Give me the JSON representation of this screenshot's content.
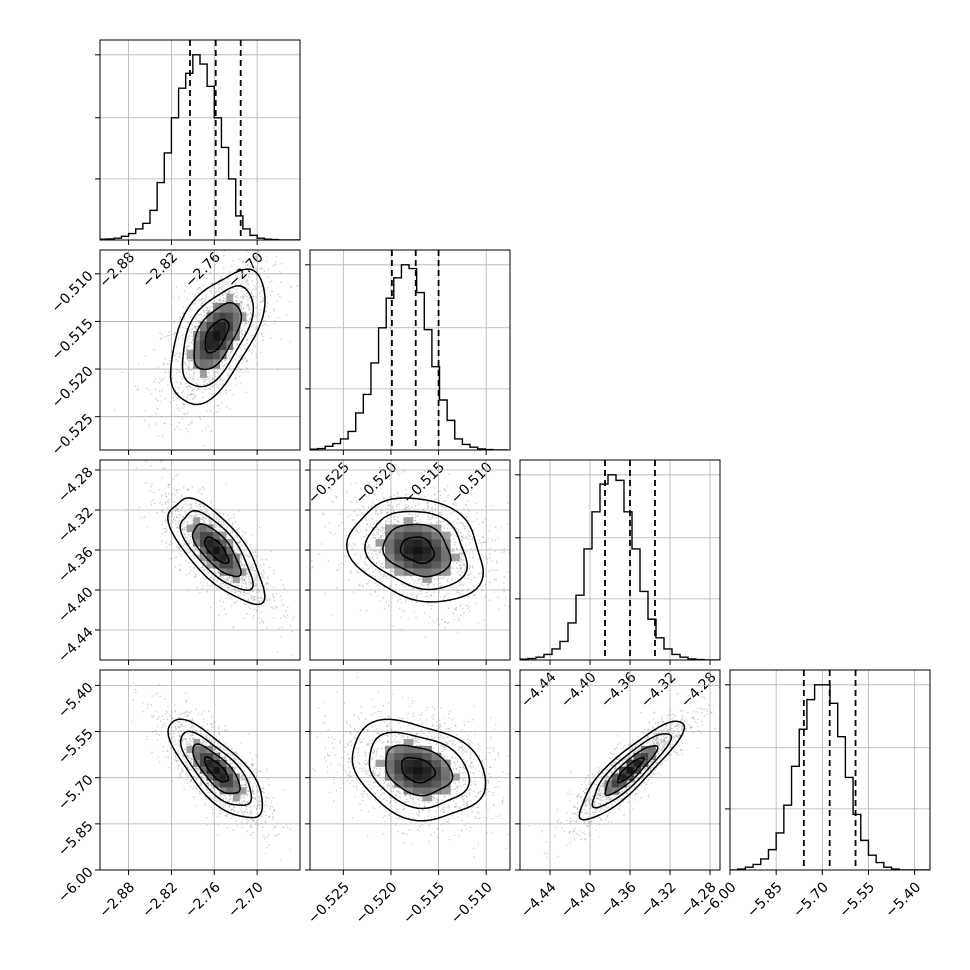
{
  "chart_data": {
    "type": "corner",
    "grid": true,
    "colors": {
      "line": "#000000",
      "grid": "#b0b0b0",
      "scatter": "#9a9a9a",
      "background": "#ffffff"
    },
    "panels": [
      {
        "name": "hist-0",
        "row": 0,
        "col": 0,
        "type": "histogram",
        "xlim": [
          -2.92,
          -2.64
        ],
        "x_ticks": [
          -2.88,
          -2.82,
          -2.76,
          -2.7
        ],
        "x_tick_labels": [
          "−2.88",
          "−2.82",
          "−2.76",
          "−2.70"
        ],
        "y_ticks": [
          0.33,
          0.66,
          1.0
        ],
        "quantiles": [
          -2.794,
          -2.758,
          -2.723
        ],
        "bin_start": -2.92,
        "bin_width": 0.01,
        "counts": [
          0.004,
          0.006,
          0.01,
          0.02,
          0.035,
          0.06,
          0.09,
          0.16,
          0.31,
          0.47,
          0.66,
          0.82,
          0.9,
          1.0,
          0.95,
          0.83,
          0.66,
          0.5,
          0.33,
          0.13,
          0.06,
          0.025,
          0.01,
          0.004,
          0.002,
          0.0,
          0.0,
          0.0
        ]
      },
      {
        "name": "scatter-1-0",
        "row": 1,
        "col": 0,
        "type": "scatter2d",
        "xlim": [
          -2.92,
          -2.64
        ],
        "ylim": [
          -0.5285,
          -0.5075
        ],
        "x_ticks": [
          -2.88,
          -2.82,
          -2.76,
          -2.7
        ],
        "y_ticks": [
          -0.51,
          -0.515,
          -0.52,
          -0.525
        ],
        "y_tick_labels": [
          "−0.510",
          "−0.515",
          "−0.520",
          "−0.525"
        ],
        "mean": [
          -2.757,
          -0.5165
        ],
        "sd": [
          0.033,
          0.0035
        ],
        "rho": 0.55
      },
      {
        "name": "hist-1",
        "row": 1,
        "col": 1,
        "type": "histogram",
        "xlim": [
          -0.5285,
          -0.5075
        ],
        "x_ticks": [
          -0.525,
          -0.52,
          -0.515,
          -0.51
        ],
        "x_tick_labels": [
          "−0.525",
          "−0.520",
          "−0.515",
          "−0.510"
        ],
        "y_ticks": [
          0.33,
          0.66,
          1.0
        ],
        "quantiles": [
          -0.5199,
          -0.5174,
          -0.515
        ],
        "bin_start": -0.5285,
        "bin_width": 0.0008,
        "counts": [
          0.004,
          0.008,
          0.02,
          0.035,
          0.06,
          0.1,
          0.2,
          0.3,
          0.47,
          0.66,
          0.82,
          0.93,
          1.0,
          0.98,
          0.85,
          0.65,
          0.45,
          0.27,
          0.16,
          0.06,
          0.03,
          0.015,
          0.006,
          0.002,
          0.0,
          0.0
        ]
      },
      {
        "name": "scatter-2-0",
        "row": 2,
        "col": 0,
        "type": "scatter2d",
        "xlim": [
          -2.92,
          -2.64
        ],
        "ylim": [
          -4.47,
          -4.27
        ],
        "x_ticks": [
          -2.88,
          -2.82,
          -2.76,
          -2.7
        ],
        "y_ticks": [
          -4.28,
          -4.32,
          -4.36,
          -4.4,
          -4.44
        ],
        "y_tick_labels": [
          "−4.28",
          "−4.32",
          "−4.36",
          "−4.40",
          "−4.44"
        ],
        "mean": [
          -2.757,
          -4.36
        ],
        "sd": [
          0.033,
          0.026
        ],
        "rho": -0.72
      },
      {
        "name": "scatter-2-1",
        "row": 2,
        "col": 1,
        "type": "scatter2d",
        "xlim": [
          -0.5285,
          -0.5075
        ],
        "ylim": [
          -4.47,
          -4.27
        ],
        "x_ticks": [
          -0.525,
          -0.52,
          -0.515,
          -0.51
        ],
        "y_ticks": [
          -4.28,
          -4.32,
          -4.36,
          -4.4,
          -4.44
        ],
        "mean": [
          -0.5172,
          -4.36
        ],
        "sd": [
          0.0035,
          0.026
        ],
        "rho": -0.2
      },
      {
        "name": "hist-2",
        "row": 2,
        "col": 2,
        "type": "histogram",
        "xlim": [
          -4.47,
          -4.27
        ],
        "x_ticks": [
          -4.44,
          -4.4,
          -4.36,
          -4.32,
          -4.28
        ],
        "x_tick_labels": [
          "−4.44",
          "−4.40",
          "−4.36",
          "−4.32",
          "−4.28"
        ],
        "y_ticks": [
          0.33,
          0.66,
          1.0
        ],
        "quantiles": [
          -4.385,
          -4.36,
          -4.335
        ],
        "bin_start": -4.47,
        "bin_width": 0.008,
        "counts": [
          0.004,
          0.008,
          0.015,
          0.03,
          0.06,
          0.1,
          0.2,
          0.35,
          0.6,
          0.8,
          0.95,
          1.0,
          0.97,
          0.8,
          0.6,
          0.37,
          0.22,
          0.12,
          0.06,
          0.03,
          0.015,
          0.006,
          0.002,
          0.0,
          0.0
        ]
      },
      {
        "name": "scatter-3-0",
        "row": 3,
        "col": 0,
        "type": "scatter2d",
        "xlim": [
          -2.92,
          -2.64
        ],
        "ylim": [
          -6.0,
          -5.35
        ],
        "x_ticks": [
          -2.88,
          -2.82,
          -2.76,
          -2.7
        ],
        "x_tick_labels": [
          "−2.88",
          "−2.82",
          "−2.76",
          "−2.70"
        ],
        "y_ticks": [
          -5.4,
          -5.55,
          -5.7,
          -5.85,
          -6.0
        ],
        "y_tick_labels": [
          "−5.40",
          "−5.55",
          "−5.70",
          "−5.85",
          "−6.00"
        ],
        "mean": [
          -2.757,
          -5.675
        ],
        "sd": [
          0.033,
          0.08
        ],
        "rho": -0.75
      },
      {
        "name": "scatter-3-1",
        "row": 3,
        "col": 1,
        "type": "scatter2d",
        "xlim": [
          -0.5285,
          -0.5075
        ],
        "ylim": [
          -6.0,
          -5.35
        ],
        "x_ticks": [
          -0.525,
          -0.52,
          -0.515,
          -0.51
        ],
        "x_tick_labels": [
          "−0.525",
          "−0.520",
          "−0.515",
          "−0.510"
        ],
        "y_ticks": [
          -5.4,
          -5.55,
          -5.7,
          -5.85,
          -6.0
        ],
        "mean": [
          -0.5172,
          -5.675
        ],
        "sd": [
          0.0035,
          0.08
        ],
        "rho": -0.25
      },
      {
        "name": "scatter-3-2",
        "row": 3,
        "col": 2,
        "type": "scatter2d",
        "xlim": [
          -4.47,
          -4.27
        ],
        "ylim": [
          -6.0,
          -5.35
        ],
        "x_ticks": [
          -4.44,
          -4.4,
          -4.36,
          -4.32,
          -4.28
        ],
        "x_tick_labels": [
          "−4.44",
          "−4.40",
          "−4.36",
          "−4.32",
          "−4.28"
        ],
        "y_ticks": [
          -5.4,
          -5.55,
          -5.7,
          -5.85,
          -6.0
        ],
        "mean": [
          -4.36,
          -5.675
        ],
        "sd": [
          0.026,
          0.08
        ],
        "rho": 0.88
      },
      {
        "name": "hist-3",
        "row": 3,
        "col": 3,
        "type": "histogram",
        "xlim": [
          -6.0,
          -5.35
        ],
        "x_ticks": [
          -6.0,
          -5.85,
          -5.7,
          -5.55,
          -5.4
        ],
        "x_tick_labels": [
          "−6.00",
          "−5.85",
          "−5.70",
          "−5.55",
          "−5.40"
        ],
        "y_ticks": [
          0.33,
          0.66,
          1.0
        ],
        "quantiles": [
          -5.76,
          -5.676,
          -5.592
        ],
        "bin_start": -6.0,
        "bin_width": 0.025,
        "counts": [
          0.0,
          0.005,
          0.015,
          0.03,
          0.06,
          0.11,
          0.2,
          0.35,
          0.56,
          0.76,
          0.92,
          1.0,
          1.0,
          0.9,
          0.72,
          0.5,
          0.3,
          0.16,
          0.08,
          0.04,
          0.015,
          0.005,
          0.0,
          0.0,
          0.0,
          0.0
        ]
      }
    ]
  }
}
